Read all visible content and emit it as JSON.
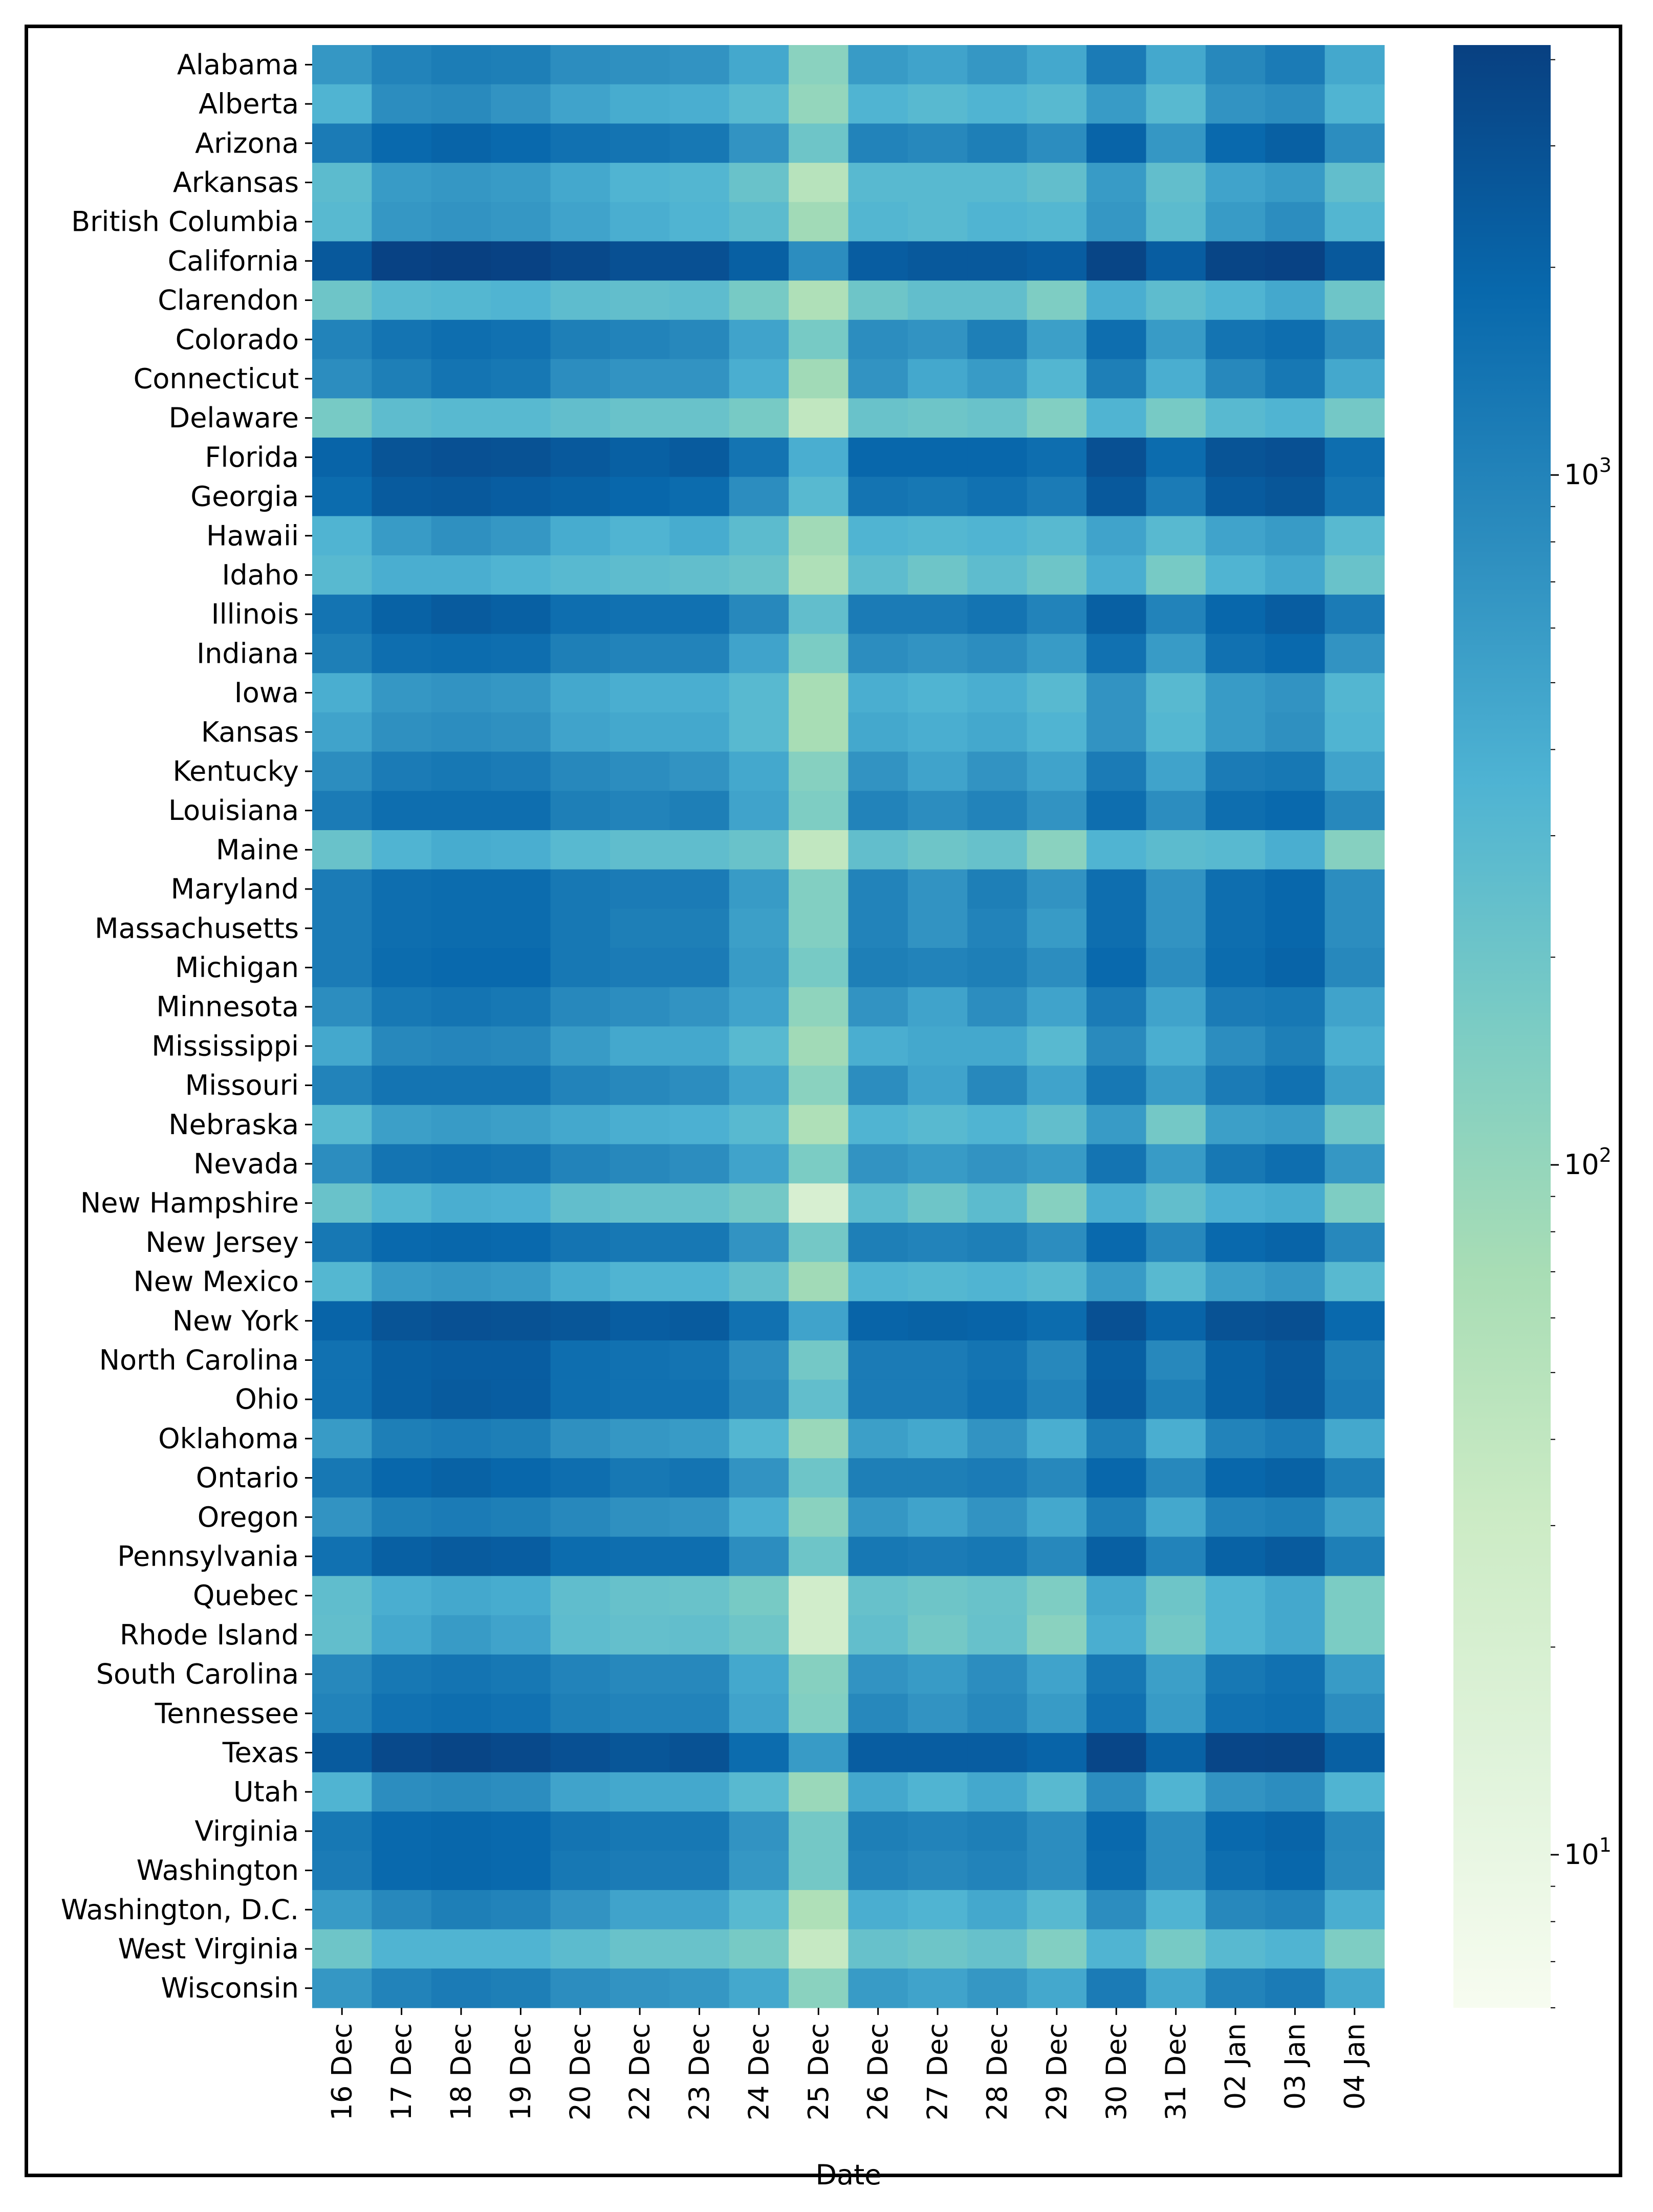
{
  "chart_data": {
    "type": "heatmap",
    "title": "",
    "xlabel": "Date",
    "ylabel": "",
    "scale": "log",
    "colormap": "GnBu",
    "vmin": 6,
    "vmax": 4200,
    "x": [
      "16 Dec",
      "17 Dec",
      "18 Dec",
      "19 Dec",
      "20 Dec",
      "22 Dec",
      "23 Dec",
      "24 Dec",
      "25 Dec",
      "26 Dec",
      "27 Dec",
      "28 Dec",
      "29 Dec",
      "30 Dec",
      "31 Dec",
      "02 Jan",
      "03 Jan",
      "04 Jan"
    ],
    "y": [
      "Alabama",
      "Alberta",
      "Arizona",
      "Arkansas",
      "British Columbia",
      "California",
      "Clarendon",
      "Colorado",
      "Connecticut",
      "Delaware",
      "Florida",
      "Georgia",
      "Hawaii",
      "Idaho",
      "Illinois",
      "Indiana",
      "Iowa",
      "Kansas",
      "Kentucky",
      "Louisiana",
      "Maine",
      "Maryland",
      "Massachusetts",
      "Michigan",
      "Minnesota",
      "Mississippi",
      "Missouri",
      "Nebraska",
      "Nevada",
      "New Hampshire",
      "New Jersey",
      "New Mexico",
      "New York",
      "North Carolina",
      "Ohio",
      "Oklahoma",
      "Ontario",
      "Oregon",
      "Pennsylvania",
      "Quebec",
      "Rhode Island",
      "South Carolina",
      "Tennessee",
      "Texas",
      "Utah",
      "Virginia",
      "Washington",
      "Washington, D.C.",
      "West Virginia",
      "Wisconsin"
    ],
    "colorbar_ticks": [
      {
        "value": 10,
        "label": "10",
        "exp": "1"
      },
      {
        "value": 100,
        "label": "10",
        "exp": "2"
      },
      {
        "value": 1000,
        "label": "10",
        "exp": "3"
      }
    ],
    "values": [
      [
        650,
        1000,
        1150,
        1100,
        800,
        750,
        700,
        450,
        120,
        600,
        500,
        650,
        450,
        1200,
        450,
        900,
        1200,
        450
      ],
      [
        350,
        800,
        850,
        700,
        500,
        420,
        400,
        300,
        100,
        350,
        300,
        350,
        300,
        600,
        300,
        700,
        800,
        350
      ],
      [
        1200,
        1800,
        2000,
        1800,
        1500,
        1400,
        1300,
        700,
        200,
        1000,
        900,
        1100,
        800,
        2000,
        650,
        1800,
        2200,
        800
      ],
      [
        280,
        600,
        650,
        600,
        450,
        350,
        330,
        220,
        50,
        300,
        300,
        300,
        250,
        600,
        250,
        500,
        600,
        250
      ],
      [
        300,
        650,
        700,
        650,
        500,
        400,
        350,
        280,
        80,
        330,
        300,
        350,
        320,
        650,
        280,
        600,
        800,
        330
      ],
      [
        2500,
        4000,
        4200,
        4000,
        3500,
        3000,
        3000,
        2200,
        800,
        2300,
        2500,
        2500,
        2300,
        3800,
        2300,
        3800,
        4000,
        2500
      ],
      [
        200,
        300,
        320,
        350,
        270,
        250,
        270,
        170,
        60,
        200,
        250,
        250,
        150,
        400,
        270,
        350,
        450,
        200
      ],
      [
        1000,
        1400,
        1600,
        1500,
        1100,
        1000,
        900,
        500,
        170,
        800,
        700,
        1100,
        550,
        1600,
        600,
        1400,
        1600,
        800
      ],
      [
        800,
        1100,
        1400,
        1300,
        800,
        700,
        700,
        400,
        80,
        700,
        450,
        600,
        330,
        1100,
        400,
        900,
        1300,
        450
      ],
      [
        170,
        270,
        300,
        300,
        250,
        220,
        220,
        170,
        40,
        220,
        200,
        220,
        140,
        350,
        170,
        300,
        350,
        180
      ],
      [
        2000,
        2800,
        3000,
        2900,
        2500,
        2200,
        2400,
        1400,
        400,
        1900,
        1900,
        1900,
        1600,
        3000,
        1700,
        2800,
        3000,
        1600
      ],
      [
        1700,
        2400,
        2500,
        2300,
        2100,
        1900,
        1700,
        800,
        300,
        1400,
        1300,
        1500,
        1200,
        2500,
        1200,
        2400,
        2700,
        1400
      ],
      [
        350,
        600,
        750,
        650,
        420,
        350,
        420,
        280,
        80,
        350,
        320,
        350,
        300,
        500,
        300,
        500,
        600,
        300
      ],
      [
        300,
        400,
        400,
        350,
        300,
        270,
        250,
        220,
        60,
        270,
        200,
        270,
        200,
        400,
        170,
        350,
        450,
        220
      ],
      [
        1400,
        2100,
        2400,
        2200,
        1600,
        1500,
        1500,
        900,
        250,
        1200,
        1200,
        1400,
        1000,
        2200,
        1000,
        1900,
        2300,
        1200
      ],
      [
        1100,
        1600,
        1700,
        1600,
        1100,
        1000,
        1000,
        500,
        160,
        800,
        700,
        800,
        600,
        1500,
        600,
        1500,
        1800,
        700
      ],
      [
        400,
        650,
        700,
        650,
        450,
        400,
        400,
        300,
        70,
        400,
        350,
        400,
        300,
        700,
        300,
        600,
        700,
        330
      ],
      [
        500,
        750,
        800,
        750,
        500,
        450,
        450,
        300,
        70,
        450,
        400,
        450,
        350,
        700,
        320,
        600,
        750,
        350
      ],
      [
        800,
        1200,
        1300,
        1200,
        900,
        800,
        700,
        450,
        130,
        700,
        500,
        700,
        500,
        1200,
        500,
        1200,
        1300,
        500
      ],
      [
        1200,
        1600,
        1600,
        1600,
        1100,
        1000,
        1100,
        500,
        150,
        1000,
        800,
        1000,
        700,
        1600,
        800,
        1600,
        1800,
        900
      ],
      [
        220,
        350,
        420,
        400,
        300,
        260,
        260,
        220,
        40,
        250,
        200,
        230,
        120,
        350,
        280,
        300,
        400,
        130
      ],
      [
        1200,
        1600,
        1700,
        1700,
        1300,
        1200,
        1200,
        600,
        140,
        1000,
        700,
        1100,
        700,
        1600,
        700,
        1600,
        1900,
        800
      ],
      [
        1200,
        1600,
        1700,
        1700,
        1300,
        1100,
        1100,
        550,
        140,
        1000,
        700,
        1000,
        600,
        1600,
        700,
        1600,
        1900,
        800
      ],
      [
        1200,
        1700,
        1800,
        1800,
        1300,
        1200,
        1200,
        600,
        170,
        1100,
        1000,
        1100,
        800,
        1800,
        800,
        1700,
        2000,
        900
      ],
      [
        800,
        1300,
        1400,
        1300,
        900,
        800,
        700,
        500,
        110,
        700,
        500,
        800,
        500,
        1200,
        500,
        1200,
        1300,
        500
      ],
      [
        450,
        900,
        950,
        900,
        600,
        450,
        450,
        300,
        80,
        400,
        450,
        450,
        300,
        850,
        400,
        800,
        1100,
        400
      ],
      [
        1000,
        1400,
        1400,
        1400,
        1000,
        900,
        800,
        500,
        120,
        800,
        500,
        900,
        500,
        1300,
        600,
        1200,
        1500,
        550
      ],
      [
        300,
        550,
        600,
        550,
        450,
        400,
        380,
        300,
        60,
        350,
        300,
        350,
        250,
        600,
        180,
        550,
        600,
        200
      ],
      [
        800,
        1400,
        1500,
        1400,
        1000,
        900,
        800,
        500,
        160,
        700,
        600,
        700,
        600,
        1400,
        600,
        1300,
        1600,
        650
      ],
      [
        220,
        320,
        400,
        380,
        250,
        230,
        230,
        180,
        20,
        280,
        200,
        280,
        130,
        400,
        250,
        380,
        420,
        150
      ],
      [
        1300,
        1800,
        1900,
        1800,
        1400,
        1300,
        1300,
        700,
        180,
        1100,
        1000,
        1100,
        800,
        1800,
        900,
        1800,
        2000,
        900
      ],
      [
        320,
        600,
        650,
        600,
        420,
        350,
        350,
        250,
        80,
        350,
        320,
        350,
        300,
        600,
        300,
        550,
        650,
        300
      ],
      [
        2000,
        2800,
        3000,
        2900,
        2700,
        2300,
        2400,
        1500,
        500,
        2000,
        2100,
        2000,
        1700,
        3000,
        2000,
        2900,
        3100,
        1800
      ],
      [
        1500,
        2200,
        2300,
        2300,
        1600,
        1500,
        1400,
        800,
        180,
        1200,
        1200,
        1400,
        900,
        2200,
        900,
        2100,
        2500,
        1100
      ],
      [
        1500,
        2200,
        2400,
        2300,
        1600,
        1500,
        1500,
        900,
        250,
        1200,
        1200,
        1500,
        1000,
        2300,
        1100,
        2100,
        2500,
        1200
      ],
      [
        600,
        1100,
        1200,
        1100,
        750,
        650,
        600,
        330,
        90,
        550,
        450,
        700,
        400,
        1100,
        400,
        1000,
        1200,
        450
      ],
      [
        1300,
        1900,
        2100,
        1900,
        1600,
        1300,
        1400,
        700,
        200,
        1100,
        1100,
        1200,
        900,
        1900,
        900,
        1900,
        2100,
        1100
      ],
      [
        700,
        1100,
        1200,
        1100,
        900,
        750,
        700,
        400,
        120,
        650,
        500,
        700,
        450,
        1100,
        450,
        1000,
        1100,
        550
      ],
      [
        1500,
        2200,
        2400,
        2300,
        1700,
        1600,
        1600,
        800,
        200,
        1300,
        1200,
        1300,
        900,
        2200,
        1000,
        2100,
        2400,
        1100
      ],
      [
        260,
        400,
        450,
        420,
        260,
        230,
        220,
        170,
        25,
        230,
        200,
        220,
        150,
        450,
        200,
        350,
        450,
        160
      ],
      [
        250,
        450,
        600,
        500,
        270,
        240,
        250,
        200,
        25,
        250,
        180,
        230,
        120,
        400,
        180,
        350,
        450,
        160
      ],
      [
        900,
        1300,
        1400,
        1300,
        1000,
        900,
        900,
        450,
        130,
        700,
        600,
        800,
        500,
        1300,
        550,
        1300,
        1500,
        600
      ],
      [
        1000,
        1500,
        1600,
        1500,
        1100,
        1000,
        1000,
        500,
        140,
        900,
        700,
        900,
        600,
        1500,
        600,
        1500,
        1600,
        800
      ],
      [
        2400,
        3500,
        3800,
        3500,
        3000,
        2700,
        2900,
        1700,
        600,
        2300,
        2300,
        2300,
        2000,
        3700,
        2100,
        3700,
        3800,
        2200
      ],
      [
        350,
        800,
        850,
        800,
        500,
        450,
        450,
        300,
        90,
        450,
        350,
        450,
        300,
        800,
        350,
        700,
        800,
        350
      ],
      [
        1300,
        1800,
        1900,
        1800,
        1400,
        1300,
        1300,
        700,
        180,
        1100,
        1000,
        1100,
        800,
        1800,
        800,
        1800,
        2000,
        900
      ],
      [
        1200,
        1800,
        1900,
        1800,
        1300,
        1200,
        1200,
        650,
        180,
        1000,
        900,
        1000,
        800,
        1700,
        800,
        1600,
        1900,
        850
      ],
      [
        600,
        900,
        1100,
        1000,
        700,
        500,
        500,
        300,
        60,
        400,
        350,
        450,
        300,
        800,
        350,
        900,
        1000,
        400
      ],
      [
        200,
        350,
        350,
        350,
        280,
        220,
        220,
        170,
        35,
        230,
        200,
        230,
        140,
        350,
        170,
        300,
        350,
        150
      ],
      [
        650,
        1000,
        1200,
        1100,
        800,
        700,
        650,
        450,
        120,
        600,
        500,
        650,
        450,
        1200,
        450,
        1000,
        1200,
        450
      ]
    ]
  }
}
